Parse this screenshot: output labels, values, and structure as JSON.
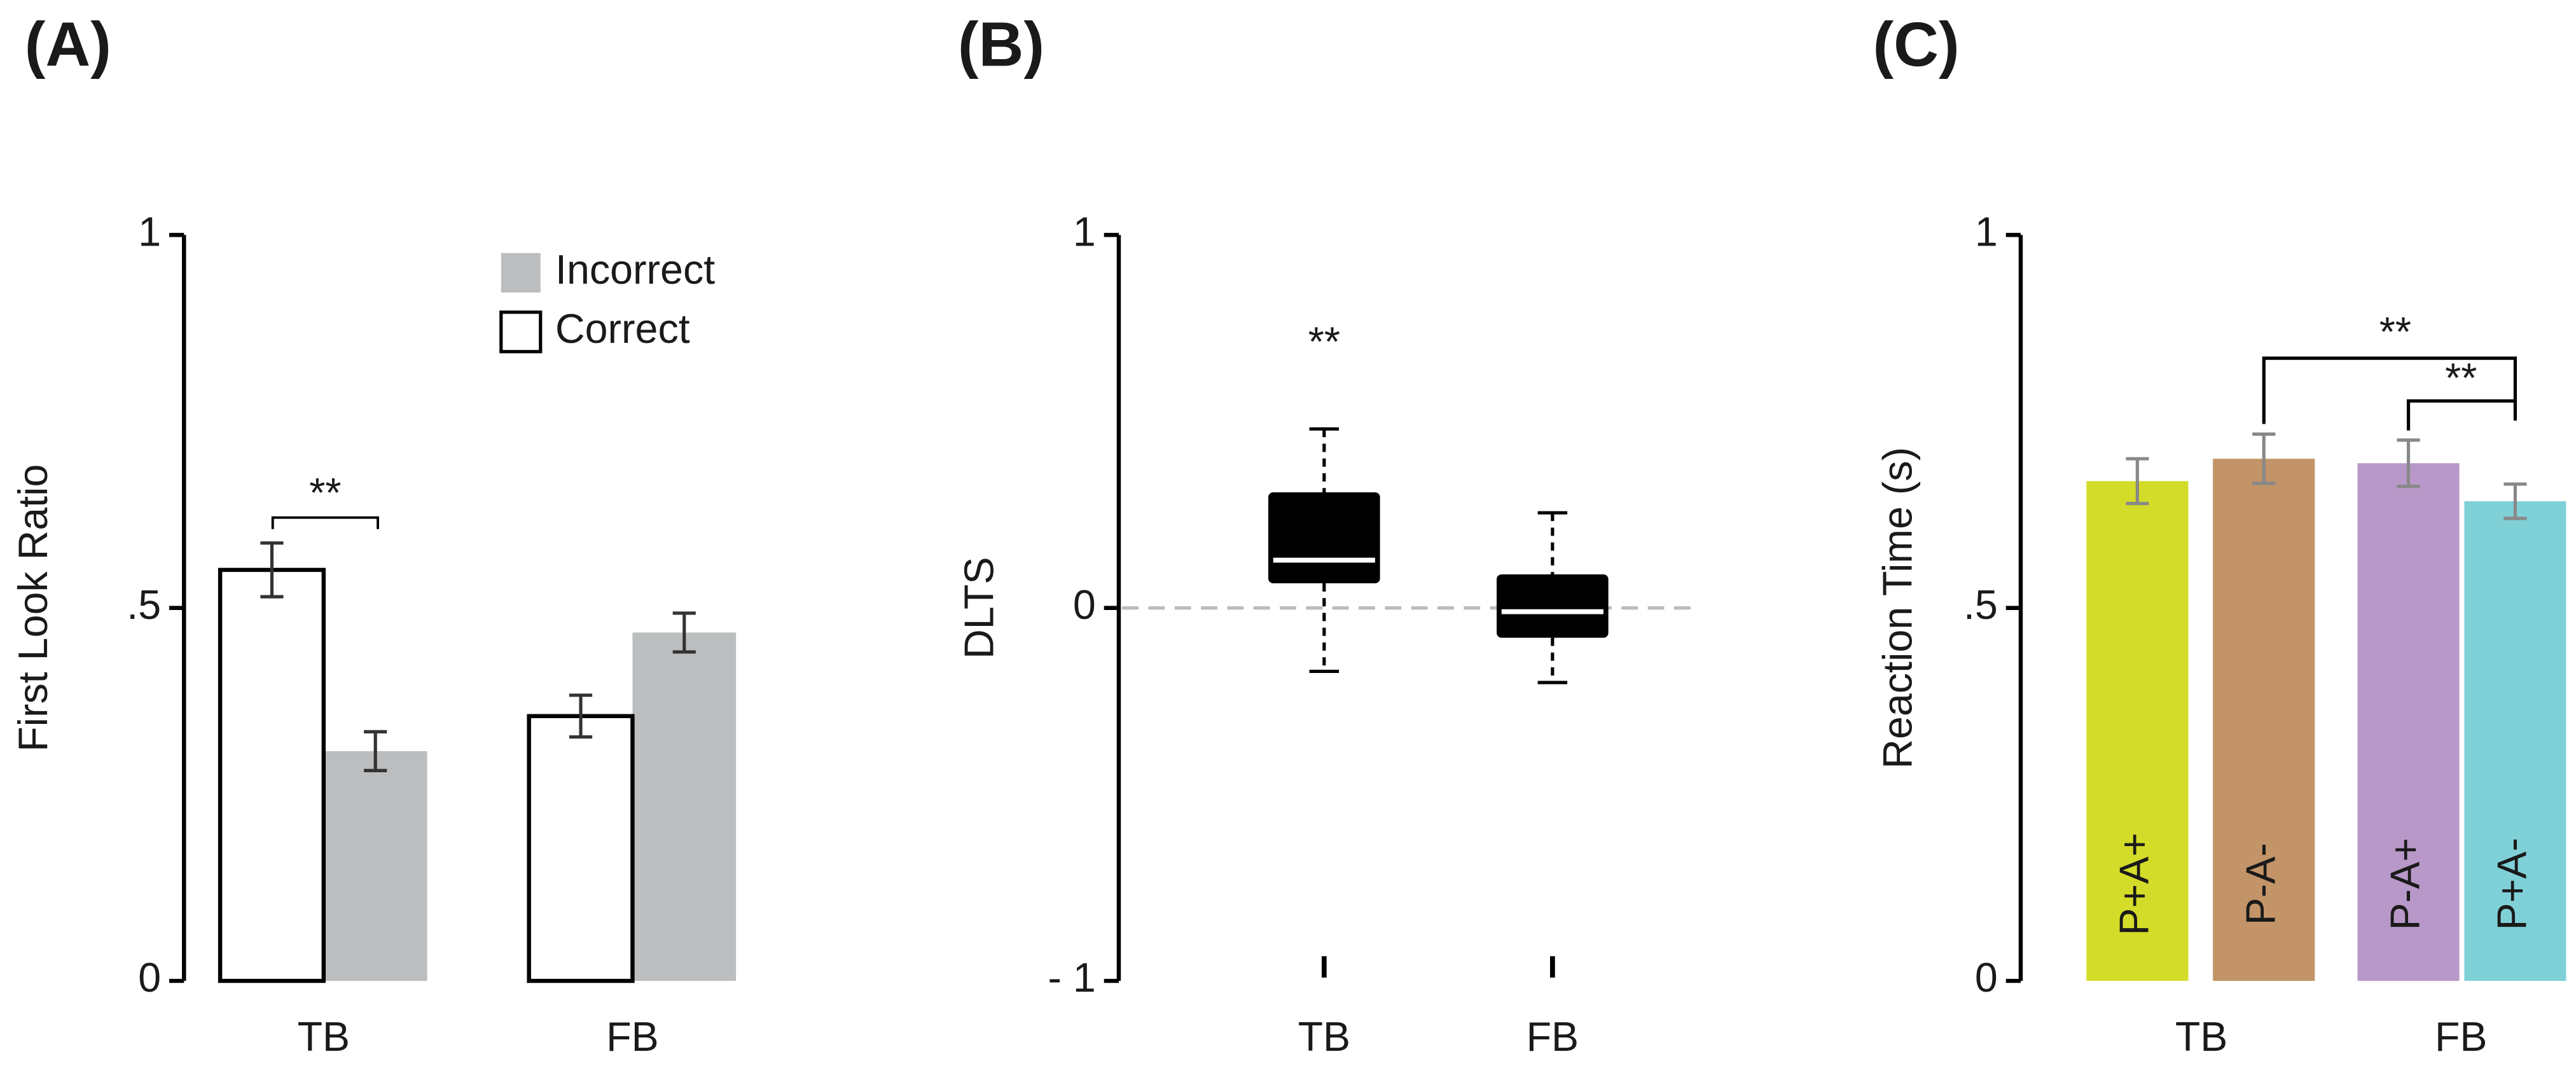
{
  "chart_data": [
    {
      "type": "grouped_bar",
      "title": "(A)",
      "ylabel": "First Look Ratio",
      "categories": [
        "TB",
        "FB"
      ],
      "series": [
        {
          "name": "Incorrect",
          "color": "#bcbdbf",
          "values": [
            0.308,
            0.467
          ],
          "errors": [
            0.026,
            0.026
          ]
        },
        {
          "name": "Correct",
          "color": "#ffffff",
          "values": [
            0.551,
            0.355
          ],
          "errors": [
            0.036,
            0.028
          ]
        }
      ],
      "ylim": [
        0,
        1
      ],
      "yticks": [
        0,
        {
          "value": 0.5,
          "label": ".5"
        },
        1
      ],
      "annotations": [
        "**"
      ]
    },
    {
      "type": "box",
      "title": "(B)",
      "ylabel": "DLTS",
      "categories": [
        "TB",
        "FB"
      ],
      "whisker_low": [
        -0.17,
        -0.2
      ],
      "q1": [
        0.066,
        -0.08
      ],
      "median": [
        0.128,
        -0.01
      ],
      "q3": [
        0.31,
        0.09
      ],
      "whisker_high": [
        0.48,
        0.255
      ],
      "color": "#000000",
      "hline": 0,
      "ylim": [
        -1,
        1
      ],
      "yticks": [
        {
          "value": -1,
          "label": "- 1"
        },
        0,
        1
      ],
      "annotations": [
        "**"
      ]
    },
    {
      "type": "bar",
      "title": "(C)",
      "ylabel": "Reaction Time (s)",
      "categories": [
        "P+A+",
        "P-A-",
        "P-A+",
        "P+A-"
      ],
      "groups": [
        "TB",
        "FB"
      ],
      "values": [
        0.67,
        0.7,
        0.694,
        0.643
      ],
      "errors": [
        0.03,
        0.033,
        0.031,
        0.023
      ],
      "colors": [
        "#d4dc2a",
        "#c29467",
        "#b898c8",
        "#80d0d8"
      ],
      "ylim": [
        0,
        1
      ],
      "yticks": [
        0,
        {
          "value": 0.5,
          "label": ".5"
        },
        1
      ],
      "annotations": [
        "**",
        "**"
      ]
    }
  ]
}
